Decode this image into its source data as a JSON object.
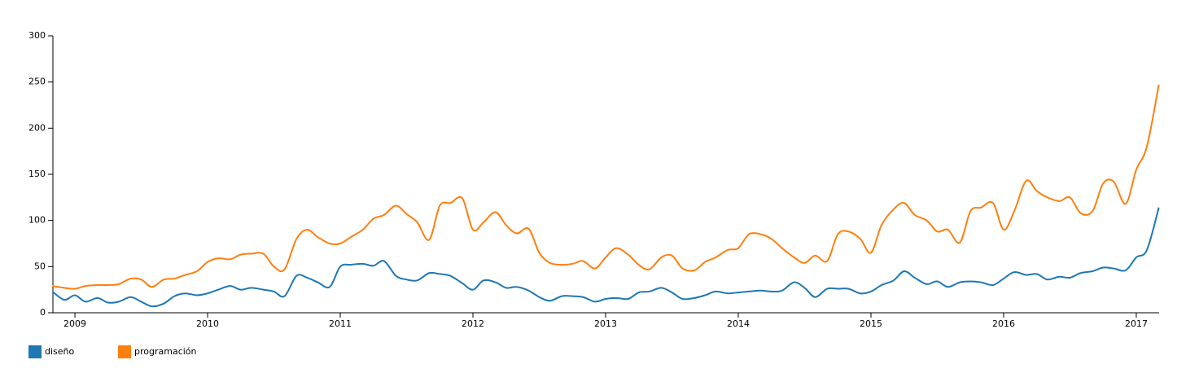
{
  "chart_data": {
    "type": "line",
    "x": [
      2008.83,
      2008.92,
      2009.0,
      2009.08,
      2009.17,
      2009.25,
      2009.33,
      2009.42,
      2009.5,
      2009.58,
      2009.67,
      2009.75,
      2009.83,
      2009.92,
      2010.0,
      2010.08,
      2010.17,
      2010.25,
      2010.33,
      2010.42,
      2010.5,
      2010.58,
      2010.67,
      2010.75,
      2010.83,
      2010.92,
      2011.0,
      2011.08,
      2011.17,
      2011.25,
      2011.33,
      2011.42,
      2011.5,
      2011.58,
      2011.67,
      2011.75,
      2011.83,
      2011.92,
      2012.0,
      2012.08,
      2012.17,
      2012.25,
      2012.33,
      2012.42,
      2012.5,
      2012.58,
      2012.67,
      2012.75,
      2012.83,
      2012.92,
      2013.0,
      2013.08,
      2013.17,
      2013.25,
      2013.33,
      2013.42,
      2013.5,
      2013.58,
      2013.67,
      2013.75,
      2013.83,
      2013.92,
      2014.0,
      2014.08,
      2014.17,
      2014.25,
      2014.33,
      2014.42,
      2014.5,
      2014.58,
      2014.67,
      2014.75,
      2014.83,
      2014.92,
      2015.0,
      2015.08,
      2015.17,
      2015.25,
      2015.33,
      2015.42,
      2015.5,
      2015.58,
      2015.67,
      2015.75,
      2015.83,
      2015.92,
      2016.0,
      2016.08,
      2016.17,
      2016.25,
      2016.33,
      2016.42,
      2016.5,
      2016.58,
      2016.67,
      2016.75,
      2016.83,
      2016.92,
      2017.0,
      2017.08,
      2017.17
    ],
    "series": [
      {
        "name": "diseño",
        "color": "#1f77b4",
        "values": [
          23,
          14,
          19,
          12,
          16,
          11,
          12,
          17,
          12,
          7,
          10,
          18,
          21,
          19,
          21,
          25,
          29,
          25,
          27,
          25,
          23,
          18,
          40,
          38,
          33,
          28,
          50,
          52,
          53,
          51,
          56,
          40,
          36,
          35,
          43,
          42,
          40,
          32,
          25,
          35,
          33,
          27,
          28,
          24,
          17,
          13,
          18,
          18,
          17,
          12,
          15,
          16,
          15,
          22,
          23,
          27,
          22,
          15,
          16,
          19,
          23,
          21,
          22,
          23,
          24,
          23,
          24,
          33,
          27,
          17,
          26,
          26,
          26,
          21,
          23,
          30,
          35,
          45,
          38,
          31,
          34,
          28,
          33,
          34,
          33,
          30,
          37,
          44,
          41,
          42,
          36,
          39,
          38,
          43,
          45,
          49,
          48,
          46,
          60,
          68,
          114
        ]
      },
      {
        "name": "programación",
        "color": "#ff7f0e",
        "values": [
          29,
          27,
          26,
          29,
          30,
          30,
          31,
          37,
          36,
          28,
          36,
          37,
          41,
          45,
          55,
          59,
          58,
          63,
          64,
          64,
          50,
          47,
          80,
          90,
          82,
          75,
          75,
          82,
          90,
          102,
          106,
          116,
          107,
          98,
          79,
          116,
          119,
          124,
          90,
          98,
          109,
          95,
          86,
          91,
          65,
          54,
          52,
          53,
          56,
          48,
          60,
          70,
          63,
          52,
          47,
          60,
          62,
          48,
          46,
          55,
          60,
          68,
          70,
          85,
          85,
          80,
          70,
          60,
          54,
          62,
          56,
          85,
          88,
          80,
          65,
          95,
          112,
          119,
          106,
          100,
          88,
          90,
          76,
          110,
          114,
          119,
          90,
          110,
          143,
          132,
          125,
          121,
          125,
          108,
          110,
          140,
          142,
          118,
          155,
          180,
          247
        ]
      }
    ],
    "xlim": [
      2008.834,
      2017.172
    ],
    "xticks": [
      2009,
      2010,
      2011,
      2012,
      2013,
      2014,
      2015,
      2016,
      2017
    ],
    "ylim": [
      0,
      300
    ],
    "yticks": [
      0,
      50,
      100,
      150,
      200,
      250,
      300
    ],
    "grid": false,
    "legend": "bottom-left"
  }
}
